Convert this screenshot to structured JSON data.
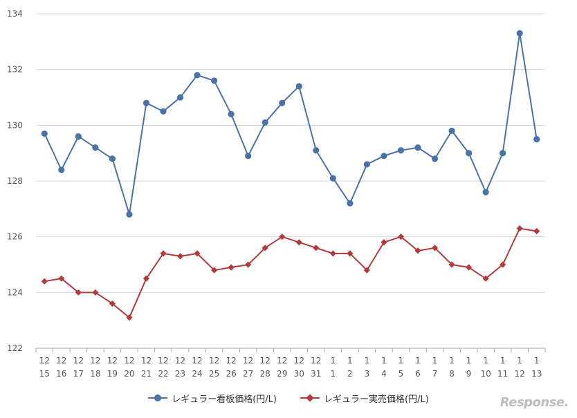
{
  "chart_data": {
    "type": "line",
    "categories": [
      [
        "12",
        "15"
      ],
      [
        "12",
        "16"
      ],
      [
        "12",
        "17"
      ],
      [
        "12",
        "18"
      ],
      [
        "12",
        "19"
      ],
      [
        "12",
        "20"
      ],
      [
        "12",
        "21"
      ],
      [
        "12",
        "22"
      ],
      [
        "12",
        "23"
      ],
      [
        "12",
        "24"
      ],
      [
        "12",
        "25"
      ],
      [
        "12",
        "26"
      ],
      [
        "12",
        "27"
      ],
      [
        "12",
        "28"
      ],
      [
        "12",
        "29"
      ],
      [
        "12",
        "30"
      ],
      [
        "12",
        "31"
      ],
      [
        "1",
        "1"
      ],
      [
        "1",
        "2"
      ],
      [
        "1",
        "3"
      ],
      [
        "1",
        "4"
      ],
      [
        "1",
        "5"
      ],
      [
        "1",
        "6"
      ],
      [
        "1",
        "7"
      ],
      [
        "1",
        "8"
      ],
      [
        "1",
        "9"
      ],
      [
        "1",
        "10"
      ],
      [
        "1",
        "11"
      ],
      [
        "1",
        "12"
      ],
      [
        "1",
        "13"
      ]
    ],
    "series": [
      {
        "name": "レギュラー看板価格(円/L)",
        "color": "#4a72a8",
        "marker": "circle",
        "values": [
          129.7,
          128.4,
          129.6,
          129.2,
          128.8,
          126.8,
          130.8,
          130.5,
          131.0,
          131.8,
          131.6,
          130.4,
          128.9,
          130.1,
          130.8,
          131.4,
          129.1,
          128.1,
          127.2,
          128.6,
          128.9,
          129.1,
          129.2,
          128.8,
          129.8,
          129.0,
          127.6,
          129.0,
          133.3,
          129.5
        ]
      },
      {
        "name": "レギュラー実売価格(円/L)",
        "color": "#b23a3a",
        "marker": "diamond",
        "values": [
          124.4,
          124.5,
          124.0,
          124.0,
          123.6,
          123.1,
          124.5,
          125.4,
          125.3,
          125.4,
          124.8,
          124.9,
          125.0,
          125.6,
          126.0,
          125.8,
          125.6,
          125.4,
          125.4,
          124.8,
          125.8,
          126.0,
          125.5,
          125.6,
          125.0,
          124.9,
          124.5,
          125.0,
          126.3,
          126.2
        ]
      }
    ],
    "yticks": [
      122,
      124,
      126,
      128,
      130,
      132,
      134
    ],
    "ylim": [
      122,
      134
    ],
    "grid": true,
    "legend": "bottom"
  },
  "watermark": "Response."
}
